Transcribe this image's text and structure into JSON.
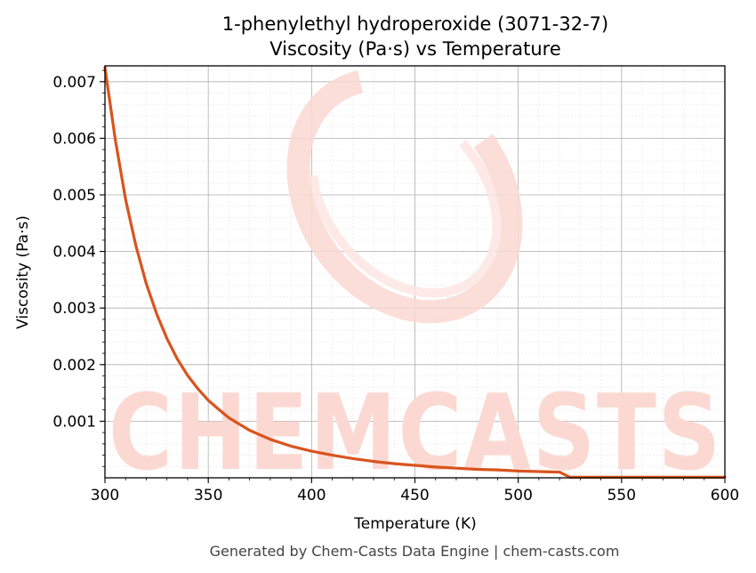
{
  "chart_data": {
    "type": "line",
    "title": "1-phenylethyl hydroperoxide (3071-32-7)",
    "subtitle": "Viscosity (Pa·s) vs Temperature",
    "xlabel": "Temperature (K)",
    "ylabel": "Viscosity (Pa·s)",
    "xlim": [
      300,
      600
    ],
    "ylim": [
      0.0,
      0.00728
    ],
    "x_ticks": [
      "300",
      "350",
      "400",
      "450",
      "500",
      "550",
      "600"
    ],
    "y_ticks": [
      "0.001",
      "0.002",
      "0.003",
      "0.004",
      "0.005",
      "0.006",
      "0.007"
    ],
    "grid": true,
    "legend": "none",
    "series": [
      {
        "color": "#d9541e",
        "x": [
          300,
          305,
          310,
          315,
          320,
          325,
          330,
          335,
          340,
          345,
          350,
          355,
          360,
          370,
          380,
          390,
          400,
          410,
          420,
          430,
          440,
          450,
          460,
          470,
          480,
          490,
          500,
          510,
          520,
          525,
          530,
          540,
          550,
          560,
          570,
          580,
          590,
          600
        ],
        "y": [
          0.00725,
          0.00598,
          0.00492,
          0.0041,
          0.00343,
          0.0029,
          0.00246,
          0.0021,
          0.00181,
          0.00157,
          0.00137,
          0.00121,
          0.00106,
          0.00084,
          0.00068,
          0.00056,
          0.00047,
          0.0004,
          0.00034,
          0.00029,
          0.00025,
          0.00022,
          0.00019,
          0.00017,
          0.00015,
          0.00014,
          0.00012,
          0.00011,
          0.0001,
          1e-05,
          1e-05,
          1e-05,
          1e-05,
          1e-05,
          1e-05,
          1e-05,
          1e-05,
          1e-05
        ]
      }
    ]
  },
  "watermark": {
    "text": "CHEMCASTS",
    "color": "#fbd9d2"
  },
  "footer": "Generated by Chem-Casts Data Engine | chem-casts.com"
}
